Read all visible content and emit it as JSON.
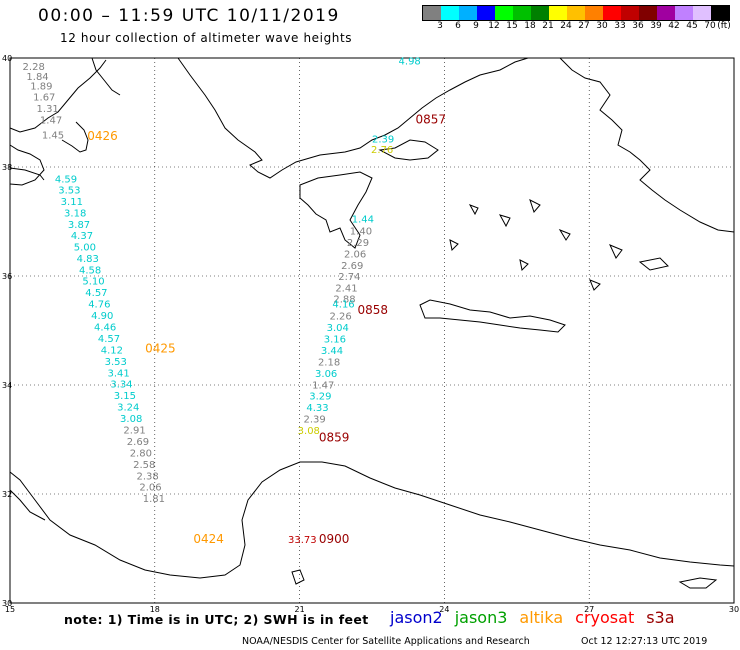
{
  "title": "00:00 – 11:59 UTC 10/11/2019",
  "subtitle": "12 hour collection of altimeter wave heights",
  "colorbar": {
    "unit": "(ft)",
    "colors": [
      "#808080",
      "#00ffff",
      "#00b0ff",
      "#0000ff",
      "#00ff00",
      "#00c000",
      "#008000",
      "#ffff00",
      "#ffc000",
      "#ff8000",
      "#ff0000",
      "#c00000",
      "#800000",
      "#a000a0",
      "#c080ff",
      "#e0c0ff",
      "#000000"
    ],
    "labels": [
      "3",
      "6",
      "9",
      "12",
      "15",
      "18",
      "21",
      "24",
      "27",
      "30",
      "33",
      "36",
      "39",
      "42",
      "45",
      "70"
    ]
  },
  "axes": {
    "lon_ticks": [
      "15",
      "18",
      "21",
      "24",
      "27",
      "30"
    ],
    "lat_ticks": [
      "40",
      "38",
      "36",
      "34",
      "32",
      "30"
    ]
  },
  "note": "note: 1) Time is in UTC; 2) SWH is in feet",
  "legend": [
    {
      "label": "jason2",
      "color": "#0000cc"
    },
    {
      "label": "jason3",
      "color": "#00a000"
    },
    {
      "label": "altika",
      "color": "#ff9900"
    },
    {
      "label": "cryosat",
      "color": "#ff0000"
    },
    {
      "label": "s3a",
      "color": "#990000"
    }
  ],
  "footer_left": "NOAA/NESDIS Center for Satellite Applications and Research",
  "footer_right": "Oct 12 12:27:13 UTC 2019",
  "tracks": [
    {
      "name": "altika-0426-0425-0424",
      "color_time": "#ff9900",
      "times": [
        {
          "label": "0426",
          "lon": 16.6,
          "lat": 38.5
        },
        {
          "label": "0425",
          "lon": 17.8,
          "lat": 34.6
        },
        {
          "label": "0424",
          "lon": 18.8,
          "lat": 31.1
        }
      ],
      "obs": [
        {
          "v": "2.28",
          "c": "#808080",
          "lon": 15.26,
          "lat": 39.78
        },
        {
          "v": "1.84",
          "c": "#808080",
          "lon": 15.34,
          "lat": 39.6
        },
        {
          "v": "1.89",
          "c": "#808080",
          "lon": 15.42,
          "lat": 39.42
        },
        {
          "v": "1.67",
          "c": "#808080",
          "lon": 15.48,
          "lat": 39.22
        },
        {
          "v": "1.31",
          "c": "#808080",
          "lon": 15.55,
          "lat": 39.01
        },
        {
          "v": "1.47",
          "c": "#808080",
          "lon": 15.62,
          "lat": 38.8
        },
        {
          "v": "1.45",
          "c": "#808080",
          "lon": 15.66,
          "lat": 38.52
        },
        {
          "v": "4.59",
          "c": "#00cccc",
          "lon": 15.93,
          "lat": 37.72
        },
        {
          "v": "3.53",
          "c": "#00cccc",
          "lon": 16.0,
          "lat": 37.51
        },
        {
          "v": "3.11",
          "c": "#00cccc",
          "lon": 16.05,
          "lat": 37.3
        },
        {
          "v": "3.18",
          "c": "#00cccc",
          "lon": 16.12,
          "lat": 37.09
        },
        {
          "v": "3.87",
          "c": "#00cccc",
          "lon": 16.2,
          "lat": 36.88
        },
        {
          "v": "4.37",
          "c": "#00cccc",
          "lon": 16.26,
          "lat": 36.68
        },
        {
          "v": "5.00",
          "c": "#00cccc",
          "lon": 16.32,
          "lat": 36.47
        },
        {
          "v": "4.83",
          "c": "#00cccc",
          "lon": 16.38,
          "lat": 36.26
        },
        {
          "v": "4.58",
          "c": "#00cccc",
          "lon": 16.43,
          "lat": 36.05
        },
        {
          "v": "5.10",
          "c": "#00cccc",
          "lon": 16.5,
          "lat": 35.84
        },
        {
          "v": "4.57",
          "c": "#00cccc",
          "lon": 16.56,
          "lat": 35.63
        },
        {
          "v": "4.76",
          "c": "#00cccc",
          "lon": 16.62,
          "lat": 35.42
        },
        {
          "v": "4.90",
          "c": "#00cccc",
          "lon": 16.68,
          "lat": 35.21
        },
        {
          "v": "4.46",
          "c": "#00cccc",
          "lon": 16.74,
          "lat": 35.0
        },
        {
          "v": "4.57",
          "c": "#00cccc",
          "lon": 16.82,
          "lat": 34.79
        },
        {
          "v": "4.12",
          "c": "#00cccc",
          "lon": 16.88,
          "lat": 34.58
        },
        {
          "v": "3.53",
          "c": "#00cccc",
          "lon": 16.96,
          "lat": 34.37
        },
        {
          "v": "3.41",
          "c": "#00cccc",
          "lon": 17.02,
          "lat": 34.16
        },
        {
          "v": "3.34",
          "c": "#00cccc",
          "lon": 17.08,
          "lat": 33.95
        },
        {
          "v": "3.15",
          "c": "#00cccc",
          "lon": 17.15,
          "lat": 33.74
        },
        {
          "v": "3.24",
          "c": "#00cccc",
          "lon": 17.22,
          "lat": 33.53
        },
        {
          "v": "3.08",
          "c": "#00cccc",
          "lon": 17.28,
          "lat": 33.32
        },
        {
          "v": "2.91",
          "c": "#808080",
          "lon": 17.35,
          "lat": 33.11
        },
        {
          "v": "2.69",
          "c": "#808080",
          "lon": 17.42,
          "lat": 32.9
        },
        {
          "v": "2.80",
          "c": "#808080",
          "lon": 17.48,
          "lat": 32.69
        },
        {
          "v": "2.58",
          "c": "#808080",
          "lon": 17.55,
          "lat": 32.48
        },
        {
          "v": "2.38",
          "c": "#808080",
          "lon": 17.62,
          "lat": 32.27
        },
        {
          "v": "2.06",
          "c": "#808080",
          "lon": 17.68,
          "lat": 32.06
        },
        {
          "v": "1.81",
          "c": "#808080",
          "lon": 17.75,
          "lat": 31.85
        }
      ]
    },
    {
      "name": "s3a-0857-0858-0859-0900",
      "color_time": "#990000",
      "times": [
        {
          "label": "0857",
          "lon": 23.4,
          "lat": 38.8
        },
        {
          "label": "0858",
          "lon": 22.2,
          "lat": 35.3
        },
        {
          "label": "0859",
          "lon": 21.4,
          "lat": 32.96
        },
        {
          "label": "0900",
          "lon": 21.4,
          "lat": 31.1
        }
      ],
      "obs": [
        {
          "v": "4.98",
          "c": "#00cccc",
          "lon": 23.05,
          "lat": 39.88
        },
        {
          "v": "2.39",
          "c": "#00cccc",
          "lon": 22.5,
          "lat": 38.45
        },
        {
          "v": "2.76",
          "c": "#cccc00",
          "lon": 22.48,
          "lat": 38.26
        },
        {
          "v": "1.44",
          "c": "#00cccc",
          "lon": 22.08,
          "lat": 36.98
        },
        {
          "v": "1.40",
          "c": "#808080",
          "lon": 22.04,
          "lat": 36.76
        },
        {
          "v": "2.29",
          "c": "#808080",
          "lon": 21.98,
          "lat": 36.55
        },
        {
          "v": "2.06",
          "c": "#808080",
          "lon": 21.92,
          "lat": 36.34
        },
        {
          "v": "2.69",
          "c": "#808080",
          "lon": 21.86,
          "lat": 36.13
        },
        {
          "v": "2.74",
          "c": "#808080",
          "lon": 21.8,
          "lat": 35.93
        },
        {
          "v": "2.41",
          "c": "#808080",
          "lon": 21.74,
          "lat": 35.72
        },
        {
          "v": "2.88",
          "c": "#808080",
          "lon": 21.7,
          "lat": 35.51
        },
        {
          "v": "4.16",
          "c": "#00cccc",
          "lon": 21.68,
          "lat": 35.42
        },
        {
          "v": "2.26",
          "c": "#808080",
          "lon": 21.62,
          "lat": 35.2
        },
        {
          "v": "3.04",
          "c": "#00cccc",
          "lon": 21.56,
          "lat": 34.99
        },
        {
          "v": "3.16",
          "c": "#00cccc",
          "lon": 21.5,
          "lat": 34.78
        },
        {
          "v": "3.44",
          "c": "#00cccc",
          "lon": 21.44,
          "lat": 34.57
        },
        {
          "v": "2.18",
          "c": "#808080",
          "lon": 21.38,
          "lat": 34.36
        },
        {
          "v": "3.06",
          "c": "#00cccc",
          "lon": 21.32,
          "lat": 34.15
        },
        {
          "v": "1.47",
          "c": "#808080",
          "lon": 21.26,
          "lat": 33.94
        },
        {
          "v": "3.29",
          "c": "#00cccc",
          "lon": 21.2,
          "lat": 33.73
        },
        {
          "v": "4.33",
          "c": "#00cccc",
          "lon": 21.14,
          "lat": 33.52
        },
        {
          "v": "2.39",
          "c": "#808080",
          "lon": 21.08,
          "lat": 33.31
        },
        {
          "v": "3.08",
          "c": "#cccc00",
          "lon": 20.96,
          "lat": 33.1
        },
        {
          "v": "33.73",
          "c": "#c00000",
          "lon": 20.76,
          "lat": 31.1
        }
      ]
    }
  ]
}
